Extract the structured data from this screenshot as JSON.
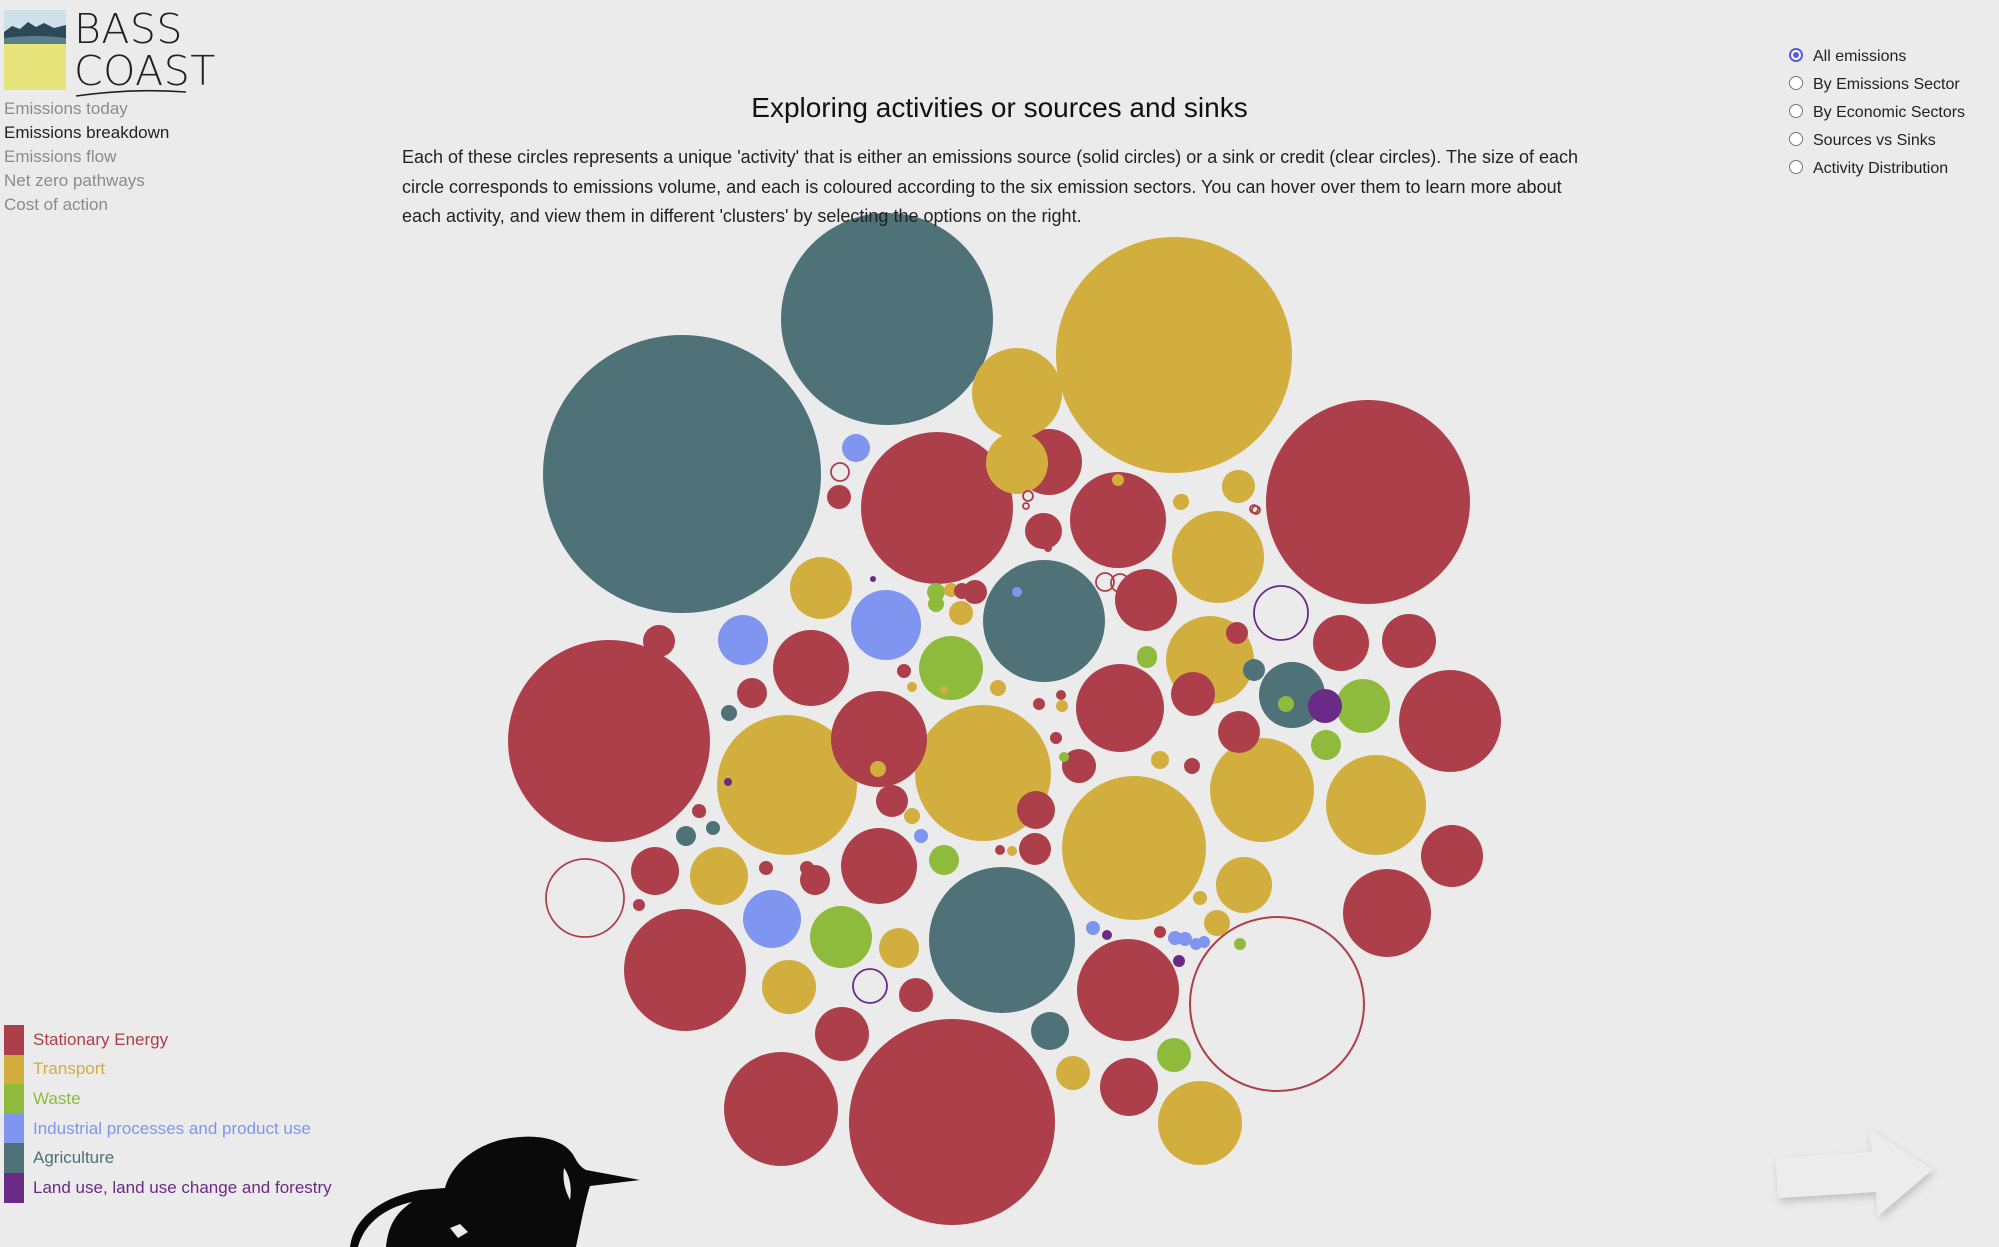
{
  "logo": {
    "line1": "BASS",
    "line2": "COAST"
  },
  "nav": [
    {
      "label": "Emissions today",
      "active": false
    },
    {
      "label": "Emissions breakdown",
      "active": true
    },
    {
      "label": "Emissions flow",
      "active": false
    },
    {
      "label": "Net zero pathways",
      "active": false
    },
    {
      "label": "Cost of action",
      "active": false
    }
  ],
  "page": {
    "title": "Exploring activities or sources and sinks",
    "intro": "Each of these circles represents a unique 'activity' that is either an emissions source (solid circles) or a sink or credit (clear circles). The size of each circle corresponds to emissions volume, and each is coloured according to the six emission sectors. You can hover over them to learn more about each activity, and view them in different 'clusters' by selecting the options on the right."
  },
  "view_options": [
    {
      "label": "All emissions",
      "selected": true
    },
    {
      "label": "By Emissions Sector",
      "selected": false
    },
    {
      "label": "By Economic Sectors",
      "selected": false
    },
    {
      "label": "Sources vs Sinks",
      "selected": false
    },
    {
      "label": "Activity Distribution",
      "selected": false
    }
  ],
  "sectors": [
    {
      "key": "S",
      "label": "Stationary Energy",
      "color": "#ad3f4a"
    },
    {
      "key": "T",
      "label": "Transport",
      "color": "#d2ae3e"
    },
    {
      "key": "W",
      "label": "Waste",
      "color": "#8fbb3c"
    },
    {
      "key": "I",
      "label": "Industrial processes and product use",
      "color": "#7f95f0"
    },
    {
      "key": "A",
      "label": "Agriculture",
      "color": "#4f7178"
    },
    {
      "key": "L",
      "label": "Land use, land use change and forestry",
      "color": "#6b2a86"
    }
  ]
}
